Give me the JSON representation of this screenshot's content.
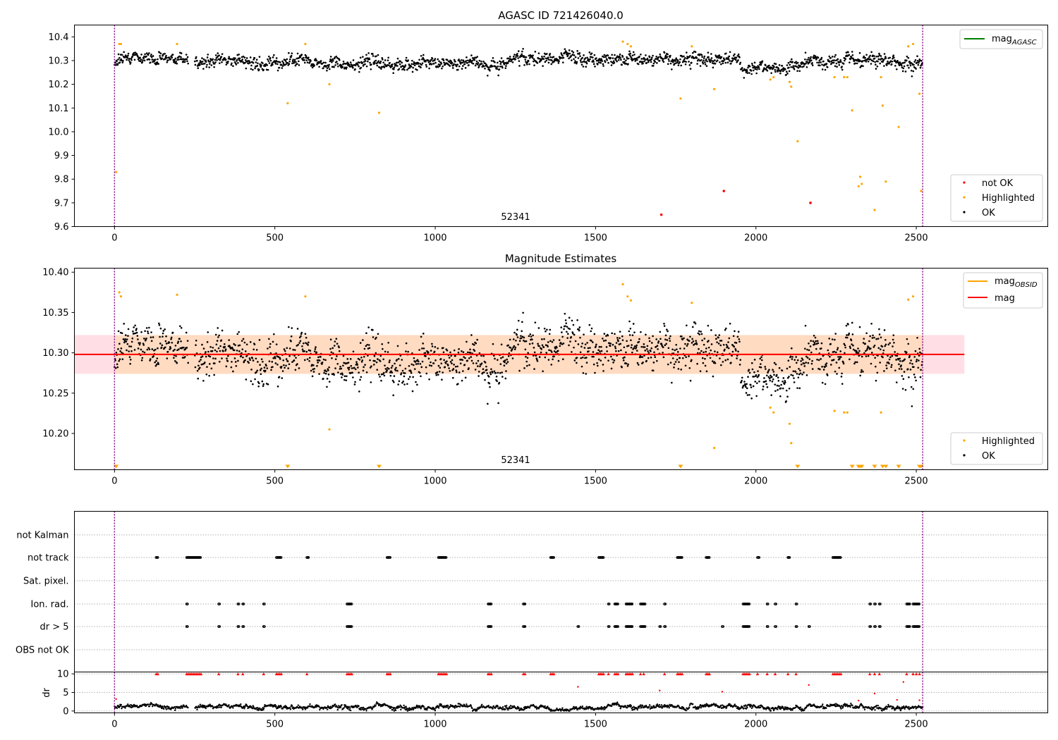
{
  "chart_data": [
    {
      "type": "scatter",
      "title": "AGASC ID 721426040.0",
      "annotation": "52341",
      "xlim": [
        -125,
        2910
      ],
      "ylim": [
        9.6,
        10.45
      ],
      "xticks": [
        "0",
        "500",
        "1000",
        "1500",
        "2000",
        "2500"
      ],
      "xtick_values": [
        0,
        500,
        1000,
        1500,
        2000,
        2500
      ],
      "yticks": [
        "9.6",
        "9.7",
        "9.8",
        "9.9",
        "10.0",
        "10.1",
        "10.2",
        "10.3",
        "10.4"
      ],
      "ytick_values": [
        9.6,
        9.7,
        9.8,
        9.9,
        10.0,
        10.1,
        10.2,
        10.3,
        10.4
      ],
      "obs_boundaries": [
        0,
        2520
      ],
      "ok_series": {
        "name": "OK",
        "x_range": [
          0,
          2520
        ],
        "segments": [
          {
            "x": [
              0,
              230
            ],
            "mean": 10.305
          },
          {
            "x": [
              250,
              600
            ],
            "mean": 10.3
          },
          {
            "x": [
              600,
              1200
            ],
            "mean": 10.285
          },
          {
            "x": [
              1200,
              1600
            ],
            "mean": 10.305
          },
          {
            "x": [
              1600,
              1950
            ],
            "mean": 10.31
          },
          {
            "x": [
              1950,
              2150
            ],
            "mean": 10.27
          },
          {
            "x": [
              2150,
              2520
            ],
            "mean": 10.29
          }
        ],
        "scatter": 0.022
      },
      "highlighted": {
        "name": "Highlighted",
        "x": [
          5,
          15,
          20,
          195,
          540,
          595,
          670,
          825,
          1585,
          1600,
          1610,
          1765,
          1800,
          1870,
          2045,
          2055,
          2105,
          2110,
          2130,
          2245,
          2275,
          2285,
          2300,
          2320,
          2325,
          2330,
          2370,
          2390,
          2395,
          2405,
          2445,
          2475,
          2490,
          2510,
          2515
        ],
        "y": [
          9.83,
          10.37,
          10.37,
          10.37,
          10.12,
          10.37,
          10.2,
          10.08,
          10.38,
          10.37,
          10.36,
          10.14,
          10.36,
          10.18,
          10.22,
          10.23,
          10.21,
          10.19,
          9.96,
          10.23,
          10.23,
          10.23,
          10.09,
          9.77,
          9.81,
          9.78,
          9.67,
          10.23,
          10.11,
          9.79,
          10.02,
          10.36,
          10.37,
          10.16,
          9.75
        ]
      },
      "not_ok": {
        "name": "not OK",
        "x": [
          1705,
          1900,
          2170
        ],
        "y": [
          9.65,
          9.75,
          9.7
        ]
      },
      "legends": {
        "line": [
          {
            "name": "mag",
            "sub": "AGASC",
            "color": "#008000"
          }
        ],
        "points": [
          {
            "name": "not OK",
            "color": "#ff0000"
          },
          {
            "name": "Highlighted",
            "color": "#ffa500"
          },
          {
            "name": "OK",
            "color": "#000000"
          }
        ]
      }
    },
    {
      "type": "scatter",
      "title": "Magnitude Estimates",
      "annotation": "52341",
      "xlim": [
        -125,
        2910
      ],
      "ylim": [
        10.155,
        10.405
      ],
      "xticks": [
        "0",
        "500",
        "1000",
        "1500",
        "2000",
        "2500"
      ],
      "xtick_values": [
        0,
        500,
        1000,
        1500,
        2000,
        2500
      ],
      "yticks": [
        "10.20",
        "10.25",
        "10.30",
        "10.35",
        "10.40"
      ],
      "ytick_values": [
        10.2,
        10.25,
        10.3,
        10.35,
        10.4
      ],
      "obs_boundaries": [
        0,
        2520
      ],
      "mag_line": {
        "name": "mag",
        "y": 10.298,
        "color": "#ff0000",
        "x": [
          -125,
          2650
        ]
      },
      "band_outer": {
        "y": [
          10.274,
          10.322
        ],
        "x": [
          -125,
          2650
        ],
        "color": "#ffc0cb"
      },
      "band_inner": {
        "y": [
          10.274,
          10.322
        ],
        "x": [
          0,
          2520
        ],
        "color": "#ffdab9"
      },
      "obsid_line": {
        "name": "mag",
        "sub": "OBSID",
        "y": 10.298,
        "color": "#ffa500",
        "x": [
          0,
          2520
        ]
      },
      "highlighted": {
        "name": "Highlighted",
        "x": [
          15,
          20,
          195,
          595,
          670,
          1585,
          1600,
          1610,
          1800,
          1870,
          2045,
          2055,
          2105,
          2110,
          2245,
          2275,
          2285,
          2390,
          2475,
          2490
        ],
        "y": [
          10.375,
          10.37,
          10.372,
          10.37,
          10.205,
          10.385,
          10.37,
          10.365,
          10.362,
          10.182,
          10.232,
          10.226,
          10.212,
          10.188,
          10.228,
          10.226,
          10.226,
          10.226,
          10.366,
          10.37
        ]
      },
      "offscale_markers": [
        5,
        540,
        825,
        1765,
        2130,
        2300,
        2320,
        2325,
        2330,
        2370,
        2395,
        2405,
        2445,
        2510,
        2515
      ],
      "legends": {
        "lines": [
          {
            "name": "mag",
            "sub": "OBSID",
            "color": "#ffa500"
          },
          {
            "name": "mag",
            "sub": "",
            "color": "#ff0000"
          }
        ],
        "points": [
          {
            "name": "Highlighted",
            "color": "#ffa500"
          },
          {
            "name": "OK",
            "color": "#000000"
          }
        ]
      }
    },
    {
      "type": "scatter",
      "title": "",
      "xlim": [
        -125,
        2910
      ],
      "categories": [
        "not Kalman",
        "not track",
        "Sat. pixel.",
        "Ion. rad.",
        "dr > 5",
        "OBS not OK"
      ],
      "obs_boundaries": [
        0,
        2520
      ],
      "flags": {
        "not track": [
          [
            130,
            135
          ],
          [
            225,
            270
          ],
          [
            505,
            520
          ],
          [
            600,
            605
          ],
          [
            850,
            860
          ],
          [
            1010,
            1035
          ],
          [
            1360,
            1370
          ],
          [
            1510,
            1525
          ],
          [
            1755,
            1770
          ],
          [
            1845,
            1855
          ],
          [
            2005,
            2010
          ],
          [
            2100,
            2105
          ],
          [
            2240,
            2265
          ]
        ],
        "Ion. rad.": [
          [
            225,
            228
          ],
          [
            325,
            328
          ],
          [
            385,
            388
          ],
          [
            400,
            403
          ],
          [
            465,
            468
          ],
          [
            725,
            740
          ],
          [
            1165,
            1175
          ],
          [
            1275,
            1280
          ],
          [
            1540,
            1543
          ],
          [
            1560,
            1570
          ],
          [
            1595,
            1615
          ],
          [
            1640,
            1655
          ],
          [
            1715,
            1718
          ],
          [
            1960,
            1980
          ],
          [
            2035,
            2038
          ],
          [
            2060,
            2063
          ],
          [
            2125,
            2128
          ],
          [
            2355,
            2358
          ],
          [
            2370,
            2373
          ],
          [
            2385,
            2388
          ],
          [
            2470,
            2480
          ],
          [
            2490,
            2510
          ]
        ],
        "dr > 5": [
          [
            225,
            228
          ],
          [
            325,
            328
          ],
          [
            385,
            388
          ],
          [
            400,
            403
          ],
          [
            465,
            468
          ],
          [
            725,
            740
          ],
          [
            1165,
            1175
          ],
          [
            1275,
            1280
          ],
          [
            1445,
            1448
          ],
          [
            1540,
            1543
          ],
          [
            1560,
            1570
          ],
          [
            1595,
            1615
          ],
          [
            1640,
            1655
          ],
          [
            1700,
            1703
          ],
          [
            1715,
            1718
          ],
          [
            1895,
            1898
          ],
          [
            1960,
            1980
          ],
          [
            2035,
            2038
          ],
          [
            2060,
            2063
          ],
          [
            2125,
            2128
          ],
          [
            2165,
            2168
          ],
          [
            2355,
            2358
          ],
          [
            2370,
            2373
          ],
          [
            2385,
            2388
          ],
          [
            2470,
            2480
          ],
          [
            2490,
            2510
          ]
        ]
      }
    },
    {
      "type": "scatter",
      "title": "",
      "ylabel": "dr",
      "xlim": [
        -125,
        2910
      ],
      "ylim": [
        -0.5,
        10.5
      ],
      "xticks": [
        "0",
        "500",
        "1000",
        "1500",
        "2000",
        "2500"
      ],
      "xtick_values": [
        0,
        500,
        1000,
        1500,
        2000,
        2500
      ],
      "yticks": [
        "0",
        "5",
        "10"
      ],
      "ytick_values": [
        0,
        5,
        10
      ],
      "obs_boundaries": [
        0,
        2520
      ],
      "baseline": {
        "mean": 1.0,
        "scatter": 0.5
      },
      "clipped_x": [
        130,
        135,
        225,
        230,
        235,
        240,
        245,
        250,
        255,
        260,
        265,
        270,
        325,
        385,
        400,
        465,
        505,
        510,
        515,
        520,
        600,
        725,
        730,
        735,
        740,
        850,
        855,
        860,
        1010,
        1015,
        1020,
        1025,
        1030,
        1035,
        1165,
        1170,
        1175,
        1275,
        1280,
        1360,
        1365,
        1370,
        1510,
        1515,
        1520,
        1525,
        1540,
        1560,
        1565,
        1570,
        1595,
        1600,
        1605,
        1610,
        1615,
        1640,
        1650,
        1715,
        1755,
        1760,
        1765,
        1770,
        1845,
        1850,
        1855,
        1960,
        1965,
        1970,
        1975,
        1980,
        2005,
        2035,
        2060,
        2100,
        2125,
        2240,
        2245,
        2250,
        2255,
        2260,
        2265,
        2355,
        2370,
        2385,
        2470,
        2490,
        2500,
        2510
      ],
      "high_points": {
        "x": [
          5,
          1445,
          1700,
          1895,
          2165,
          2320,
          2370,
          2440,
          2460,
          2510
        ],
        "y": [
          3.2,
          6.5,
          5.5,
          5.2,
          7.0,
          2.8,
          4.7,
          3.0,
          7.8,
          2.9
        ]
      }
    }
  ]
}
